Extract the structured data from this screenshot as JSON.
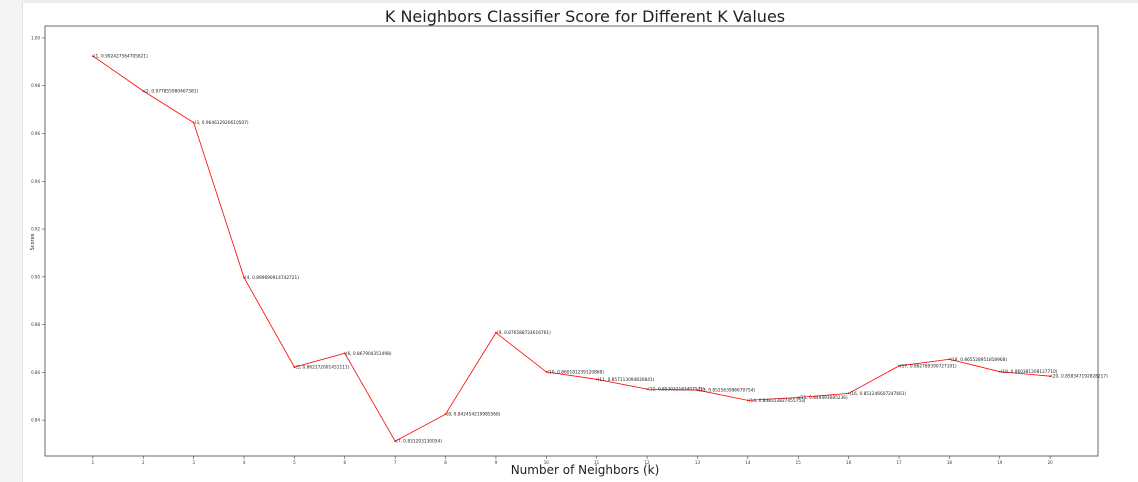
{
  "chart_data": {
    "type": "line",
    "title": "K Neighbors Classifier Score for Different K Values",
    "xlabel": "Number of Neighbors (k)",
    "ylabel": "Scores",
    "x": [
      1,
      2,
      3,
      4,
      5,
      6,
      7,
      8,
      9,
      10,
      11,
      12,
      13,
      14,
      15,
      16,
      17,
      18,
      19,
      20
    ],
    "series": [
      {
        "values": [
          0.9924,
          0.9778,
          0.9646,
          0.8997,
          0.8622,
          0.868,
          0.8312,
          0.8425,
          0.8766,
          0.8602,
          0.8571,
          0.853,
          0.8526,
          0.8483,
          0.8495,
          0.8512,
          0.8627,
          0.8655,
          0.8603,
          0.8584
        ],
        "color": "#ff0000"
      }
    ],
    "point_labels": [
      "(1, 0.992427564705821)",
      "(2, 0.977855980467381)",
      "(3, 0.964612920610507)",
      "(4, 0.899690914742721)",
      "(5, 0.862172001451111)",
      "(6, 0.867904351498)",
      "(7, 0.831203130054)",
      "(8, 0.842454219985568)",
      "(9, 0.876588724616761)",
      "(10, 0.860181239120868)",
      "(11, 0.857113094830841)",
      "(12, 0.853032183407575)",
      "(13, 0.852563996670754)",
      "(14, 0.848313827455753)",
      "(15, 0.849493085236)",
      "(16, 0.851246607247661)",
      "(17, 0.862789390727101)",
      "(18, 0.865528951818968)",
      "(19, 0.860381208127710)",
      "(20, 0.858347192828217)"
    ],
    "xticks": [
      "1",
      "2",
      "3",
      "4",
      "5",
      "6",
      "7",
      "8",
      "9",
      "10",
      "11",
      "12",
      "13",
      "14",
      "15",
      "16",
      "17",
      "18",
      "19",
      "20"
    ],
    "yticks": [
      "0.84",
      "0.86",
      "0.88",
      "0.90",
      "0.92",
      "0.94",
      "0.96",
      "0.98",
      "1.00"
    ],
    "ylim": [
      0.825,
      1.005
    ],
    "xlim": [
      0.05,
      20.95
    ],
    "grid": false,
    "legend": "none"
  }
}
